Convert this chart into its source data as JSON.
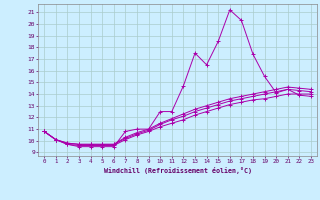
{
  "xlabel": "Windchill (Refroidissement éolien,°C)",
  "background_color": "#cceeff",
  "grid_color": "#aacccc",
  "line_color": "#aa00aa",
  "x_ticks": [
    0,
    1,
    2,
    3,
    4,
    5,
    6,
    7,
    8,
    9,
    10,
    11,
    12,
    13,
    14,
    15,
    16,
    17,
    18,
    19,
    20,
    21,
    22,
    23
  ],
  "y_ticks": [
    9,
    10,
    11,
    12,
    13,
    14,
    15,
    16,
    17,
    18,
    19,
    20,
    21
  ],
  "xlim": [
    -0.5,
    23.5
  ],
  "ylim": [
    8.7,
    21.7
  ],
  "series": [
    {
      "x": [
        0,
        1,
        2,
        3,
        4,
        5,
        6,
        7,
        8,
        9,
        10,
        11,
        12,
        13,
        14,
        15,
        16,
        17,
        18,
        19,
        20,
        21,
        22,
        23
      ],
      "y": [
        10.8,
        10.1,
        9.7,
        9.5,
        9.5,
        9.5,
        9.5,
        10.8,
        11.0,
        11.0,
        12.5,
        12.5,
        14.7,
        17.5,
        16.5,
        18.5,
        21.2,
        20.3,
        17.4,
        15.5,
        14.1,
        14.4,
        13.9,
        13.8
      ]
    },
    {
      "x": [
        0,
        1,
        2,
        3,
        4,
        5,
        6,
        7,
        8,
        9,
        10,
        11,
        12,
        13,
        14,
        15,
        16,
        17,
        18,
        19,
        20,
        21,
        22,
        23
      ],
      "y": [
        10.8,
        10.1,
        9.7,
        9.6,
        9.6,
        9.6,
        9.6,
        10.1,
        10.5,
        10.8,
        11.2,
        11.5,
        11.8,
        12.2,
        12.5,
        12.8,
        13.1,
        13.3,
        13.5,
        13.6,
        13.8,
        14.0,
        14.0,
        14.0
      ]
    },
    {
      "x": [
        0,
        1,
        2,
        3,
        4,
        5,
        6,
        7,
        8,
        9,
        10,
        11,
        12,
        13,
        14,
        15,
        16,
        17,
        18,
        19,
        20,
        21,
        22,
        23
      ],
      "y": [
        10.8,
        10.1,
        9.8,
        9.7,
        9.7,
        9.7,
        9.7,
        10.2,
        10.6,
        10.9,
        11.4,
        11.8,
        12.1,
        12.5,
        12.8,
        13.1,
        13.4,
        13.6,
        13.8,
        14.0,
        14.2,
        14.4,
        14.3,
        14.2
      ]
    },
    {
      "x": [
        0,
        1,
        2,
        3,
        4,
        5,
        6,
        7,
        8,
        9,
        10,
        11,
        12,
        13,
        14,
        15,
        16,
        17,
        18,
        19,
        20,
        21,
        22,
        23
      ],
      "y": [
        10.8,
        10.1,
        9.8,
        9.7,
        9.7,
        9.7,
        9.7,
        10.3,
        10.7,
        11.0,
        11.5,
        11.9,
        12.3,
        12.7,
        13.0,
        13.3,
        13.6,
        13.8,
        14.0,
        14.2,
        14.4,
        14.6,
        14.5,
        14.4
      ]
    }
  ]
}
